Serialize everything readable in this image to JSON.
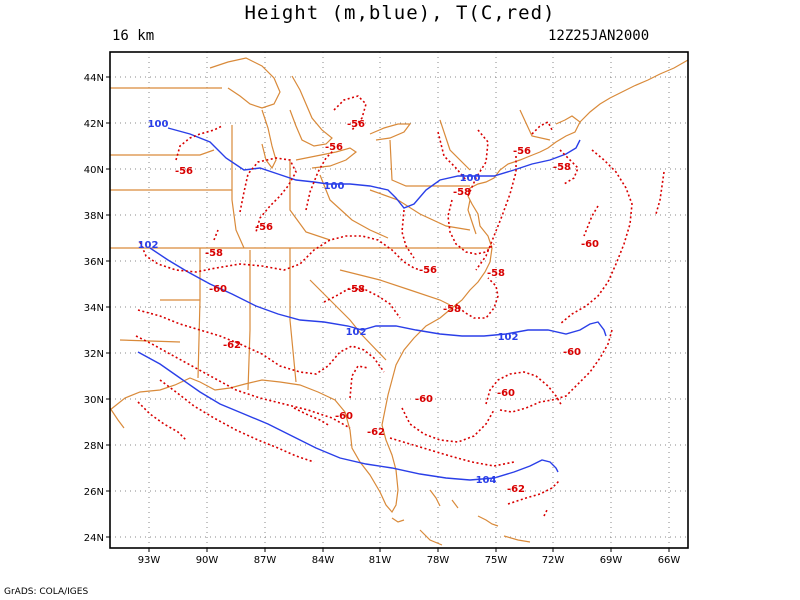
{
  "title": "Height (m,blue), T(C,red)",
  "level": "16 km",
  "valid_time": "12Z25JAN2000",
  "credit": "GrADS: COLA/IGES",
  "colors": {
    "height": "#2a3fe8",
    "temperature": "#d80000",
    "map": "#d98a3a",
    "grid": "#888888"
  },
  "map": {
    "lat_labels": [
      "24N",
      "26N",
      "28N",
      "30N",
      "32N",
      "34N",
      "36N",
      "38N",
      "40N",
      "42N",
      "44N"
    ],
    "lon_labels": [
      "93W",
      "90W",
      "87W",
      "84W",
      "81W",
      "78W",
      "75W",
      "72W",
      "69W",
      "66W"
    ],
    "lat_range": [
      23.5,
      45.2
    ],
    "lon_range": [
      -95,
      -65.5
    ]
  },
  "height_labels": [
    "100",
    "100",
    "100",
    "102",
    "102",
    "102",
    "104"
  ],
  "temp_labels": [
    "-56",
    "-56",
    "-56",
    "-56",
    "-58",
    "-56",
    "-56",
    "-58",
    "-58",
    "-58",
    "-58",
    "-60",
    "-60",
    "-62",
    "-60",
    "-60",
    "-60",
    "-62",
    "-60",
    "-62"
  ]
}
